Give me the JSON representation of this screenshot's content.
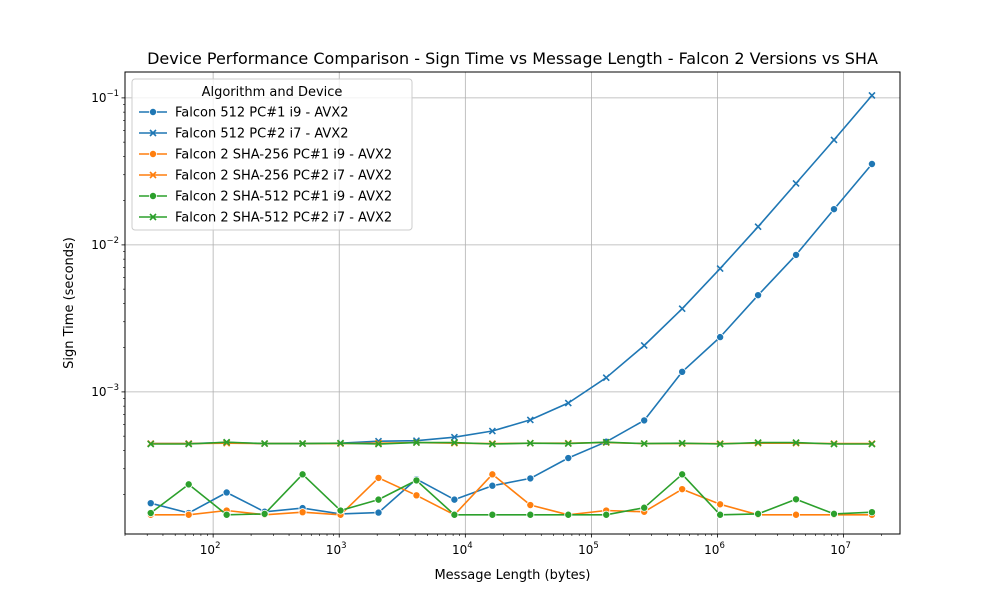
{
  "chart_data": {
    "type": "line",
    "title": "Device Performance Comparison - Sign Time vs Message Length - Falcon 2 Versions vs SHA",
    "xlabel": "Message Length (bytes)",
    "ylabel": "Sign Time (seconds)",
    "xscale": "log",
    "yscale": "log",
    "xlim": [
      20,
      28000000
    ],
    "ylim": [
      0.000108,
      0.15
    ],
    "grid": true,
    "legend": {
      "title": "Algorithm and Device",
      "position": "top-left"
    },
    "x_ticks": [
      {
        "value": 100,
        "base": "10",
        "exp": "2"
      },
      {
        "value": 1000,
        "base": "10",
        "exp": "3"
      },
      {
        "value": 10000,
        "base": "10",
        "exp": "4"
      },
      {
        "value": 100000,
        "base": "10",
        "exp": "5"
      },
      {
        "value": 1000000,
        "base": "10",
        "exp": "6"
      },
      {
        "value": 10000000,
        "base": "10",
        "exp": "7"
      }
    ],
    "y_ticks": [
      {
        "value": 0.001,
        "base": "10",
        "exp": "−3"
      },
      {
        "value": 0.01,
        "base": "10",
        "exp": "−2"
      },
      {
        "value": 0.1,
        "base": "10",
        "exp": "−1"
      }
    ],
    "x": [
      32,
      64,
      128,
      256,
      512,
      1024,
      2048,
      4096,
      8192,
      16384,
      32768,
      65536,
      131072,
      262144,
      524288,
      1048576,
      2097152,
      4194304,
      8388608,
      16777216
    ],
    "series": [
      {
        "name": "Falcon 512 PC#1 i9 - AVX2",
        "color": "#1f77b4",
        "marker": "circle",
        "values": [
          0.000175,
          0.00015,
          0.000207,
          0.000153,
          0.000162,
          0.000148,
          0.000151,
          0.000255,
          0.000185,
          0.00023,
          0.000258,
          0.000355,
          0.000458,
          0.00064,
          0.00137,
          0.00236,
          0.00455,
          0.00855,
          0.0175,
          0.0355
        ]
      },
      {
        "name": "Falcon 512 PC#2 i7 - AVX2",
        "color": "#1f77b4",
        "marker": "x",
        "values": [
          0.000445,
          0.000445,
          0.000452,
          0.000445,
          0.000445,
          0.000448,
          0.000462,
          0.000466,
          0.000492,
          0.000542,
          0.000645,
          0.00084,
          0.00125,
          0.00207,
          0.00368,
          0.0069,
          0.0133,
          0.0262,
          0.0518,
          0.104
        ]
      },
      {
        "name": "Falcon 2 SHA-256 PC#1 i9 - AVX2",
        "color": "#ff7f0e",
        "marker": "circle",
        "values": [
          0.000146,
          0.000146,
          0.000156,
          0.000146,
          0.000152,
          0.000146,
          0.00026,
          0.000198,
          0.000146,
          0.000275,
          0.00017,
          0.000146,
          0.000156,
          0.000153,
          0.000218,
          0.000172,
          0.000146,
          0.000146,
          0.000146,
          0.000146
        ]
      },
      {
        "name": "Falcon 2 SHA-256 PC#2 i7 - AVX2",
        "color": "#ff7f0e",
        "marker": "x",
        "values": [
          0.000445,
          0.000445,
          0.000448,
          0.000445,
          0.000445,
          0.000445,
          0.000448,
          0.000452,
          0.000448,
          0.000445,
          0.000448,
          0.000448,
          0.000452,
          0.000445,
          0.000445,
          0.000445,
          0.000448,
          0.000448,
          0.000445,
          0.000445
        ]
      },
      {
        "name": "Falcon 2 SHA-512 PC#1 i9 - AVX2",
        "color": "#2ca02c",
        "marker": "circle",
        "values": [
          0.00015,
          0.000235,
          0.000146,
          0.000148,
          0.000275,
          0.000156,
          0.000185,
          0.00025,
          0.000146,
          0.000146,
          0.000146,
          0.000146,
          0.000146,
          0.000163,
          0.000275,
          0.000146,
          0.000148,
          0.000186,
          0.000148,
          0.000152
        ]
      },
      {
        "name": "Falcon 2 SHA-512 PC#2 i7 - AVX2",
        "color": "#2ca02c",
        "marker": "x",
        "values": [
          0.000442,
          0.000442,
          0.000455,
          0.000445,
          0.000445,
          0.000448,
          0.000442,
          0.000452,
          0.000452,
          0.000442,
          0.000448,
          0.000445,
          0.000455,
          0.000445,
          0.000448,
          0.000442,
          0.000452,
          0.000452,
          0.000442,
          0.000442
        ]
      }
    ]
  }
}
